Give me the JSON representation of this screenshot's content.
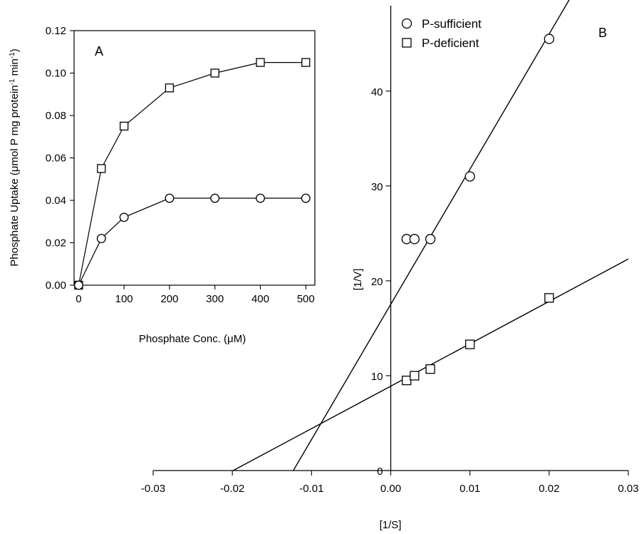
{
  "chart_data": [
    {
      "panel": "A",
      "type": "line",
      "title": "",
      "panel_label": "A",
      "xlabel": "Phosphate Conc. (μM)",
      "ylabel_html": "Phosphate Uptake (μmol P mg protein<tspan baseline-shift=\"super\" font-size=\"10\">-1</tspan> min<tspan baseline-shift=\"super\" font-size=\"10\">-1</tspan>)",
      "xlim": [
        -10,
        520
      ],
      "ylim": [
        0,
        0.12
      ],
      "x_ticks": [
        0,
        100,
        200,
        300,
        400,
        500
      ],
      "x_tick_labels": [
        "0",
        "100",
        "200",
        "300",
        "400",
        "500"
      ],
      "y_ticks": [
        0,
        0.02,
        0.04,
        0.06,
        0.08,
        0.1,
        0.12
      ],
      "y_tick_labels": [
        "0.00",
        "0.02",
        "0.04",
        "0.06",
        "0.08",
        "0.10",
        "0.12"
      ],
      "grid": false,
      "series": [
        {
          "marker": "square",
          "x": [
            0,
            50,
            100,
            200,
            300,
            400,
            500
          ],
          "y": [
            0.0,
            0.055,
            0.075,
            0.093,
            0.1,
            0.105,
            0.105
          ]
        },
        {
          "marker": "circle",
          "x": [
            0,
            50,
            100,
            200,
            300,
            400,
            500
          ],
          "y": [
            0.0,
            0.022,
            0.032,
            0.041,
            0.041,
            0.041,
            0.041
          ]
        }
      ]
    },
    {
      "panel": "B",
      "type": "scatter",
      "title": "",
      "panel_label": "B",
      "xlabel": "[1/S]",
      "ylabel": "[1/V]",
      "xlim": [
        -0.03,
        0.03
      ],
      "ylim": [
        0,
        49
      ],
      "x_ticks": [
        -0.03,
        -0.02,
        -0.01,
        0.0,
        0.01,
        0.02,
        0.03
      ],
      "x_tick_labels": [
        "-0.03",
        "-0.02",
        "-0.01",
        "0.00",
        "0.01",
        "0.02",
        "0.03"
      ],
      "y_ticks": [
        0,
        10,
        20,
        30,
        40
      ],
      "y_tick_labels": [
        "0",
        "10",
        "20",
        "30",
        "40"
      ],
      "grid": false,
      "legend": "top-left",
      "series": [
        {
          "name": "P-sufficient",
          "marker": "circle",
          "x": [
            0.002,
            0.003,
            0.005,
            0.01,
            0.02
          ],
          "y": [
            24.4,
            24.4,
            24.4,
            31.0,
            45.5
          ],
          "fit_line": {
            "x": [
              -0.0123,
              0.0228
            ],
            "y": [
              0,
              50
            ]
          }
        },
        {
          "name": "P-deficient",
          "marker": "square",
          "x": [
            0.002,
            0.003,
            0.005,
            0.01,
            0.02
          ],
          "y": [
            9.5,
            10.0,
            10.7,
            13.3,
            18.2
          ],
          "fit_line": {
            "x": [
              -0.0199,
              0.03
            ],
            "y": [
              0,
              22.3
            ]
          }
        }
      ]
    }
  ]
}
